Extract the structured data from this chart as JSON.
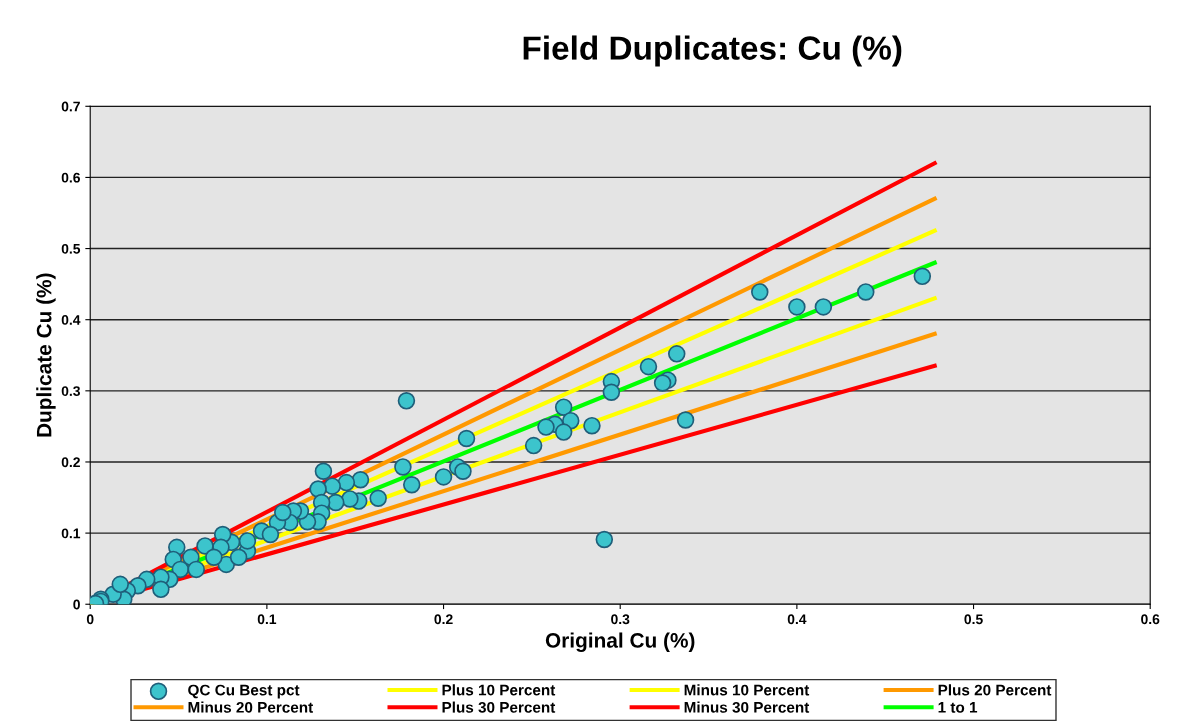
{
  "chart_data": {
    "type": "scatter",
    "title": "Field Duplicates: Cu (%)",
    "xlabel": "Original Cu (%)",
    "ylabel": "Duplicate Cu (%)",
    "xlim": [
      0,
      0.6
    ],
    "xticks": [
      0,
      0.1,
      0.2,
      0.3,
      0.4,
      0.5,
      0.6
    ],
    "ylim": [
      0,
      0.7
    ],
    "yticks": [
      0,
      0.1,
      0.2,
      0.3,
      0.4,
      0.5,
      0.6,
      0.7
    ],
    "grid": "y",
    "legend": "bottom",
    "series": [
      {
        "name": "QC Cu Best pct",
        "marker": "circle",
        "color": "#3cc4cc",
        "x": [
          0.471,
          0.439,
          0.415,
          0.4,
          0.379,
          0.179,
          0.332,
          0.316,
          0.327,
          0.324,
          0.295,
          0.295,
          0.337,
          0.268,
          0.272,
          0.263,
          0.258,
          0.268,
          0.284,
          0.251,
          0.213,
          0.208,
          0.211,
          0.2,
          0.177,
          0.182,
          0.163,
          0.153,
          0.145,
          0.152,
          0.147,
          0.137,
          0.132,
          0.129,
          0.139,
          0.131,
          0.131,
          0.129,
          0.123,
          0.119,
          0.291,
          0.115,
          0.113,
          0.106,
          0.097,
          0.102,
          0.089,
          0.089,
          0.08,
          0.075,
          0.074,
          0.077,
          0.065,
          0.057,
          0.049,
          0.047,
          0.051,
          0.045,
          0.04,
          0.032,
          0.027,
          0.021,
          0.019,
          0.013,
          0.006,
          0.002,
          0.06,
          0.07,
          0.084,
          0.109,
          0.017,
          0.04,
          0.006,
          0.003
        ],
        "values": [
          0.461,
          0.439,
          0.418,
          0.418,
          0.439,
          0.286,
          0.352,
          0.334,
          0.315,
          0.311,
          0.313,
          0.298,
          0.259,
          0.277,
          0.258,
          0.253,
          0.249,
          0.242,
          0.251,
          0.223,
          0.233,
          0.193,
          0.187,
          0.179,
          0.193,
          0.168,
          0.149,
          0.175,
          0.171,
          0.145,
          0.148,
          0.166,
          0.187,
          0.162,
          0.143,
          0.143,
          0.128,
          0.116,
          0.116,
          0.131,
          0.091,
          0.131,
          0.115,
          0.115,
          0.103,
          0.098,
          0.075,
          0.089,
          0.087,
          0.098,
          0.08,
          0.056,
          0.082,
          0.066,
          0.08,
          0.063,
          0.049,
          0.035,
          0.038,
          0.035,
          0.026,
          0.019,
          0.007,
          0.014,
          0.007,
          0.0,
          0.049,
          0.066,
          0.066,
          0.129,
          0.028,
          0.021,
          0.004,
          0.001
        ]
      },
      {
        "name": "Plus 10 Percent",
        "type": "line",
        "color": "#ffff00",
        "x": [
          0,
          0.478
        ],
        "values": [
          0,
          0.525
        ]
      },
      {
        "name": "Minus 10 Percent",
        "type": "line",
        "color": "#ffff00",
        "x": [
          0,
          0.478
        ],
        "values": [
          0,
          0.43
        ]
      },
      {
        "name": "Plus 20 Percent",
        "type": "line",
        "color": "#ff9900",
        "x": [
          0,
          0.478
        ],
        "values": [
          0,
          0.57
        ]
      },
      {
        "name": "Minus 20 Percent",
        "type": "line",
        "color": "#ff9900",
        "x": [
          0,
          0.478
        ],
        "values": [
          0,
          0.38
        ]
      },
      {
        "name": "Plus 30 Percent",
        "type": "line",
        "color": "#ff0000",
        "x": [
          0,
          0.478
        ],
        "values": [
          0,
          0.62
        ]
      },
      {
        "name": "Minus 30 Percent",
        "type": "line",
        "color": "#ff0000",
        "x": [
          0,
          0.478
        ],
        "values": [
          0,
          0.335
        ]
      },
      {
        "name": "1 to 1",
        "type": "line",
        "color": "#00ff00",
        "x": [
          0,
          0.478
        ],
        "values": [
          0,
          0.48
        ]
      }
    ]
  }
}
